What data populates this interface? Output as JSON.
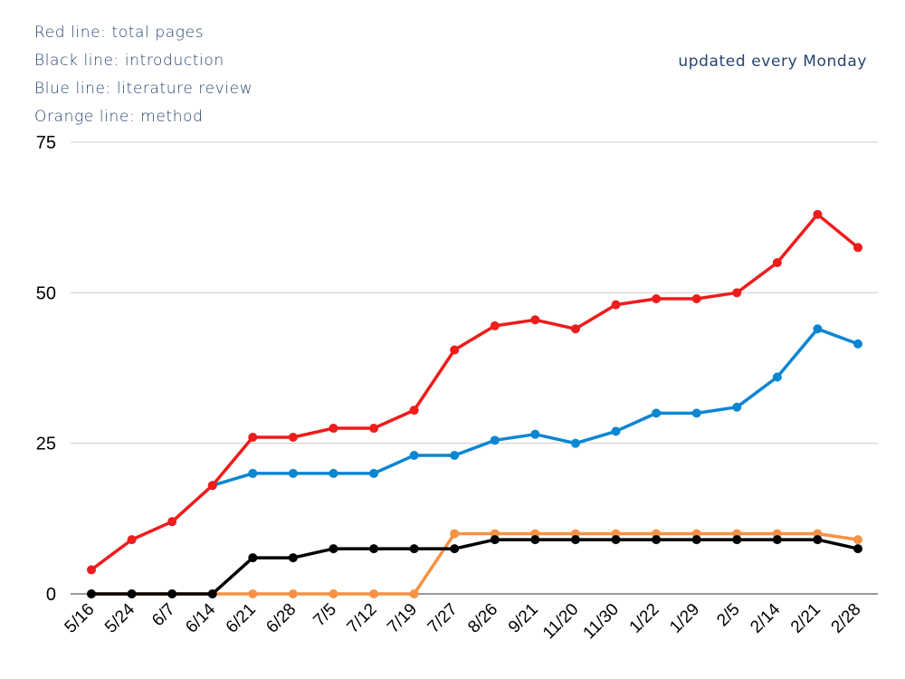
{
  "legend": {
    "line1": "Red line: total pages",
    "line2": "Black line: introduction",
    "line3": "Blue line: literature review",
    "line4": "Orange line: method"
  },
  "note": "updated every Monday",
  "chart_data": {
    "type": "line",
    "title": "",
    "xlabel": "",
    "ylabel": "",
    "ylim": [
      0,
      75
    ],
    "yticks": [
      0,
      25,
      50,
      75
    ],
    "grid": true,
    "categories": [
      "5/16",
      "5/24",
      "6/7",
      "6/14",
      "6/21",
      "6/28",
      "7/5",
      "7/12",
      "7/19",
      "7/27",
      "8/26",
      "9/21",
      "11/20",
      "11/30",
      "1/22",
      "1/29",
      "2/5",
      "2/14",
      "2/21",
      "2/28"
    ],
    "series": [
      {
        "color": "#ee1c1c",
        "values": [
          4,
          9,
          12,
          18,
          26,
          26,
          27.5,
          27.5,
          30.5,
          40.5,
          44.5,
          45.5,
          44,
          48,
          49,
          49,
          50,
          55,
          63,
          57.5
        ]
      },
      {
        "color": "#0b86d1",
        "values": [
          null,
          null,
          null,
          18,
          20,
          20,
          20,
          20,
          23,
          23,
          25.5,
          26.5,
          25,
          27,
          30,
          30,
          31,
          36,
          44,
          41.5
        ]
      },
      {
        "color": "#000000",
        "values": [
          0,
          0,
          0,
          0,
          6,
          6,
          7.5,
          7.5,
          7.5,
          7.5,
          9,
          9,
          9,
          9,
          9,
          9,
          9,
          9,
          9,
          7.5
        ]
      },
      {
        "color": "#f79245",
        "values": [
          0,
          0,
          0,
          0,
          0,
          0,
          0,
          0,
          0,
          10,
          10,
          10,
          10,
          10,
          10,
          10,
          10,
          10,
          10,
          9
        ]
      }
    ]
  }
}
